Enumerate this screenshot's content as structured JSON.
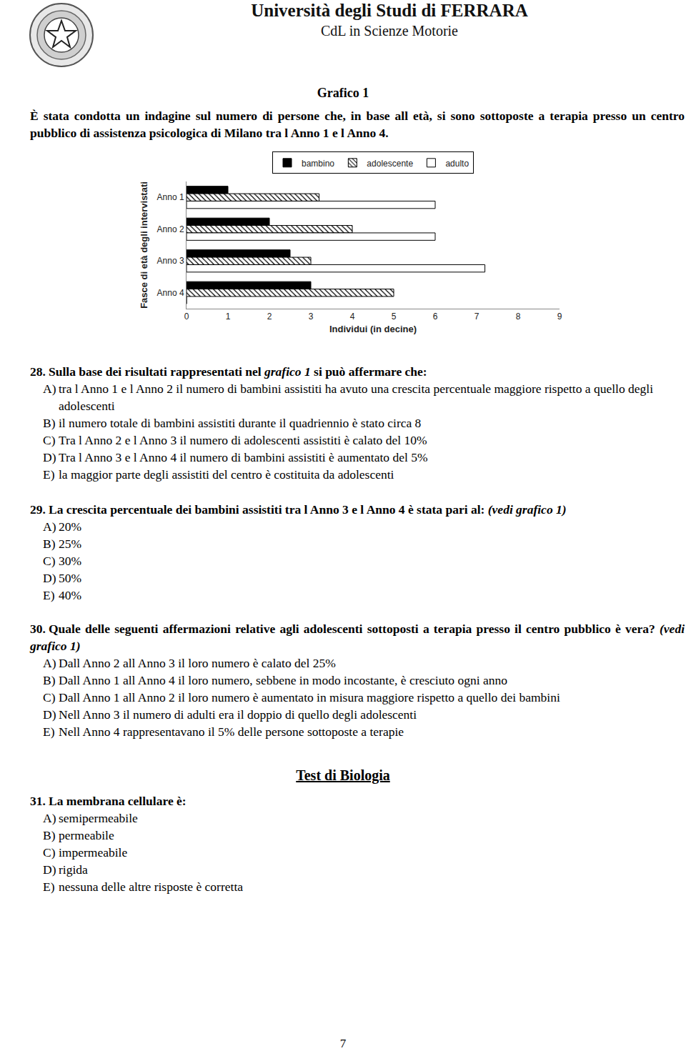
{
  "header": {
    "university": "Università degli Studi di FERRARA",
    "course": "CdL in Scienze Motorie"
  },
  "figure_title": "Grafico 1",
  "intro": "È stata condotta un indagine sul numero di persone che, in base all età, si sono sottoposte a terapia presso un centro pubblico di assistenza psicologica di Milano tra l Anno 1 e l Anno 4.",
  "chart_data": {
    "type": "bar",
    "orientation": "horizontal",
    "categories": [
      "Anno 1",
      "Anno 2",
      "Anno 3",
      "Anno 4"
    ],
    "series": [
      {
        "name": "bambino",
        "color": "#000000",
        "values": [
          1,
          2,
          2.5,
          3
        ]
      },
      {
        "name": "adolescente",
        "color": "#ffffff",
        "marker": "hatched",
        "values": [
          3.2,
          4,
          3,
          5
        ]
      },
      {
        "name": "adulto",
        "color": "#ffffff",
        "values": [
          6,
          6,
          7.2,
          0
        ]
      }
    ],
    "x_label": "Individui (in decine)",
    "y_label": "Fasce di età degli intervistati",
    "xlim": [
      0,
      9
    ],
    "xticks": [
      0,
      1,
      2,
      3,
      4,
      5,
      6,
      7,
      8,
      9
    ],
    "grid": false,
    "legend": "top"
  },
  "questions_before": [
    {
      "number": "28.",
      "text": [
        "Sulla base dei risultati rappresentati nel ",
        {
          "i": "grafico 1"
        },
        " si può affermare che:"
      ],
      "options": [
        {
          "letter": "A)",
          "text": "tra l Anno 1 e l Anno 2 il numero di bambini assistiti ha avuto una crescita percentuale maggiore rispetto a quello degli adolescenti"
        },
        {
          "letter": "B)",
          "text": "il numero totale di bambini assistiti durante il quadriennio è stato circa 8"
        },
        {
          "letter": "C)",
          "text": "Tra l Anno 2 e l Anno 3 il numero di adolescenti assistiti è calato del 10%"
        },
        {
          "letter": "D)",
          "text": "Tra l Anno 3 e l Anno 4 il numero di bambini assistiti è aumentato del 5%"
        },
        {
          "letter": "E)",
          "text": "la maggior parte degli assistiti del centro è costituita da adolescenti"
        }
      ]
    },
    {
      "number": "29.",
      "text": [
        "La crescita percentuale dei bambini assistiti tra l Anno 3 e l Anno 4 è stata pari al: ",
        {
          "i": "(vedi grafico 1)"
        }
      ],
      "options": [
        {
          "letter": "A)",
          "text": "20%"
        },
        {
          "letter": "B)",
          "text": "25%"
        },
        {
          "letter": "C)",
          "text": "30%"
        },
        {
          "letter": "D)",
          "text": "50%"
        },
        {
          "letter": "E)",
          "text": "40%"
        }
      ]
    },
    {
      "number": "30.",
      "text": [
        "Quale delle seguenti affermazioni relative agli adolescenti sottoposti a terapia presso il centro pubblico è vera? ",
        {
          "i": "(vedi grafico 1)"
        }
      ],
      "options": [
        {
          "letter": "A)",
          "text": "Dall Anno 2 all Anno 3 il loro numero è calato del 25%"
        },
        {
          "letter": "B)",
          "text": "Dall Anno 1 all Anno 4 il loro numero, sebbene in modo incostante, è cresciuto ogni anno"
        },
        {
          "letter": "C)",
          "text": "Dall Anno 1 all Anno 2 il loro numero è aumentato in misura maggiore rispetto a quello dei bambini"
        },
        {
          "letter": "D)",
          "text": "Nell Anno 3 il numero di adulti era il doppio di quello degli adolescenti"
        },
        {
          "letter": "E)",
          "text": "Nell Anno 4 rappresentavano il 5% delle persone sottoposte a terapie"
        }
      ]
    }
  ],
  "section_title": "Test di Biologia",
  "questions_after": [
    {
      "number": "31.",
      "text": [
        "La membrana cellulare è:"
      ],
      "options": [
        {
          "letter": "A)",
          "text": "semipermeabile"
        },
        {
          "letter": "B)",
          "text": "permeabile"
        },
        {
          "letter": "C)",
          "text": "impermeabile"
        },
        {
          "letter": "D)",
          "text": "rigida"
        },
        {
          "letter": "E)",
          "text": "nessuna delle altre risposte è corretta"
        }
      ]
    }
  ],
  "page_number": "7"
}
